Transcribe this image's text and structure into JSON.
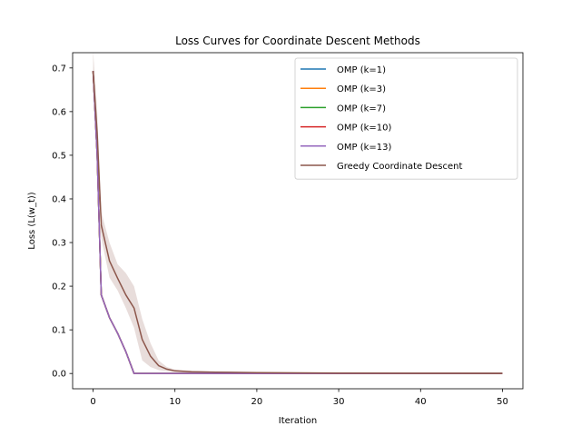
{
  "chart_data": {
    "type": "line",
    "title": "Loss Curves for Coordinate Descent Methods",
    "xlabel": "Iteration",
    "ylabel": "Loss (L(w_t))",
    "xlim": [
      -2.5,
      52.5
    ],
    "ylim": [
      -0.035,
      0.735
    ],
    "xticks": [
      0,
      10,
      20,
      30,
      40,
      50
    ],
    "yticks": [
      0.0,
      0.1,
      0.2,
      0.3,
      0.4,
      0.5,
      0.6,
      0.7
    ],
    "xtick_labels": [
      "0",
      "10",
      "20",
      "30",
      "40",
      "50"
    ],
    "ytick_labels": [
      "0.0",
      "0.1",
      "0.2",
      "0.3",
      "0.4",
      "0.5",
      "0.6",
      "0.7"
    ],
    "grid": false,
    "legend_position": "top-right",
    "series": [
      {
        "name": "OMP (k=1)",
        "color": "#1f77b4",
        "x": [
          0,
          0.5,
          1,
          2,
          3,
          4,
          5,
          6,
          10,
          20,
          30,
          40,
          50
        ],
        "y": [
          0.693,
          0.5,
          0.18,
          0.128,
          0.092,
          0.05,
          0.0,
          0.0,
          0.0,
          0.0,
          0.0,
          0.0,
          0.0
        ]
      },
      {
        "name": "OMP (k=3)",
        "color": "#ff7f0e",
        "x": [
          0,
          0.5,
          1,
          2,
          3,
          4,
          5,
          6,
          10,
          20,
          30,
          40,
          50
        ],
        "y": [
          0.693,
          0.5,
          0.18,
          0.128,
          0.092,
          0.05,
          0.0,
          0.0,
          0.0,
          0.0,
          0.0,
          0.0,
          0.0
        ]
      },
      {
        "name": "OMP (k=7)",
        "color": "#2ca02c",
        "x": [
          0,
          0.5,
          1,
          2,
          3,
          4,
          5,
          6,
          10,
          20,
          30,
          40,
          50
        ],
        "y": [
          0.693,
          0.5,
          0.18,
          0.128,
          0.092,
          0.05,
          0.0,
          0.0,
          0.0,
          0.0,
          0.0,
          0.0,
          0.0
        ]
      },
      {
        "name": "OMP (k=10)",
        "color": "#d62728",
        "x": [
          0,
          0.5,
          1,
          2,
          3,
          4,
          5,
          6,
          10,
          20,
          30,
          40,
          50
        ],
        "y": [
          0.693,
          0.5,
          0.18,
          0.128,
          0.092,
          0.05,
          0.0,
          0.0,
          0.0,
          0.0,
          0.0,
          0.0,
          0.0
        ]
      },
      {
        "name": "OMP (k=13)",
        "color": "#9467bd",
        "x": [
          0,
          0.5,
          1,
          2,
          3,
          4,
          5,
          6,
          10,
          20,
          30,
          40,
          50
        ],
        "y": [
          0.693,
          0.5,
          0.18,
          0.128,
          0.092,
          0.05,
          0.0,
          0.0,
          0.0,
          0.0,
          0.0,
          0.0,
          0.0
        ]
      },
      {
        "name": "Greedy Coordinate Descent",
        "color": "#8c564b",
        "band_color": "#8c564b",
        "x": [
          0,
          0.5,
          1,
          2,
          3,
          4,
          5,
          6,
          7,
          8,
          9,
          10,
          12,
          15,
          20,
          30,
          40,
          50
        ],
        "y": [
          0.693,
          0.55,
          0.34,
          0.258,
          0.218,
          0.18,
          0.15,
          0.078,
          0.04,
          0.018,
          0.01,
          0.006,
          0.004,
          0.003,
          0.002,
          0.001,
          0.0005,
          0.0
        ],
        "upper": [
          0.74,
          0.6,
          0.37,
          0.3,
          0.25,
          0.23,
          0.2,
          0.125,
          0.07,
          0.03,
          0.015,
          0.009,
          0.006,
          0.004,
          0.003,
          0.002,
          0.001,
          0.001
        ],
        "lower": [
          0.655,
          0.5,
          0.31,
          0.22,
          0.19,
          0.15,
          0.105,
          0.03,
          0.015,
          0.008,
          0.005,
          0.003,
          0.002,
          0.002,
          0.001,
          0.0,
          0.0,
          0.0
        ]
      }
    ]
  }
}
